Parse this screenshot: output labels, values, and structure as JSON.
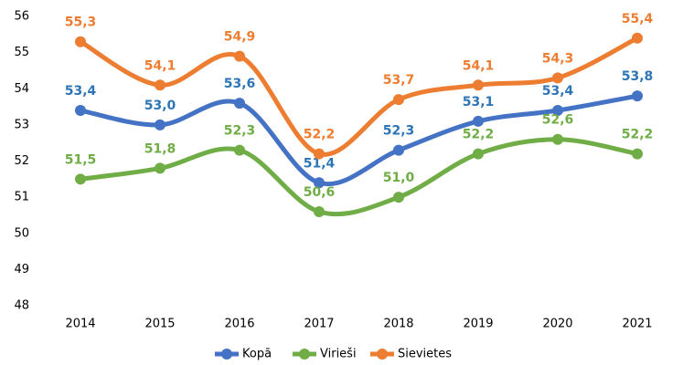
{
  "chart_data": {
    "type": "line",
    "categories": [
      "2014",
      "2015",
      "2016",
      "2017",
      "2018",
      "2019",
      "2020",
      "2021"
    ],
    "series": [
      {
        "name": "Kopā",
        "color": "#4472c4",
        "label_color": "#2e75b6",
        "values": [
          53.4,
          53.0,
          53.6,
          51.4,
          52.3,
          53.1,
          53.4,
          53.8
        ],
        "value_labels": [
          "53,4",
          "53,0",
          "53,6",
          "51,4",
          "52,3",
          "53,1",
          "53,4",
          "53,8"
        ]
      },
      {
        "name": "Virieši",
        "color": "#70ad47",
        "label_color": "#70ad47",
        "values": [
          51.5,
          51.8,
          52.3,
          50.6,
          51.0,
          52.2,
          52.6,
          52.2
        ],
        "value_labels": [
          "51,5",
          "51,8",
          "52,3",
          "50,6",
          "51,0",
          "52,2",
          "52,6",
          "52,2"
        ]
      },
      {
        "name": "Sievietes",
        "color": "#ed7d31",
        "label_color": "#ed7d31",
        "values": [
          55.3,
          54.1,
          54.9,
          52.2,
          53.7,
          54.1,
          54.3,
          55.4
        ],
        "value_labels": [
          "55,3",
          "54,1",
          "54,9",
          "52,2",
          "53,7",
          "54,1",
          "54,3",
          "55,4"
        ]
      }
    ],
    "ylim": [
      48,
      56
    ],
    "yticks": [
      48,
      49,
      50,
      51,
      52,
      53,
      54,
      55,
      56
    ],
    "grid": false,
    "smooth": true,
    "legend": "bottom"
  }
}
